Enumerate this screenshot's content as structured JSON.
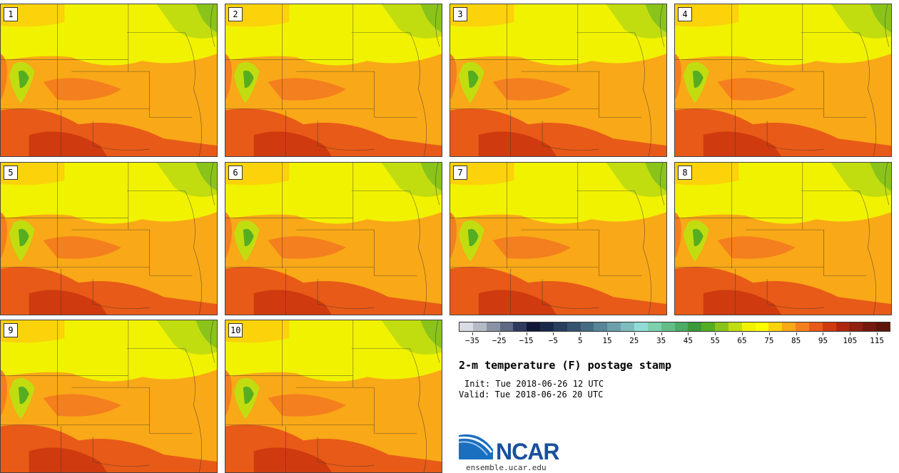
{
  "panels": [
    {
      "label": "1"
    },
    {
      "label": "2"
    },
    {
      "label": "3"
    },
    {
      "label": "4"
    },
    {
      "label": "5"
    },
    {
      "label": "6"
    },
    {
      "label": "7"
    },
    {
      "label": "8"
    },
    {
      "label": "9"
    },
    {
      "label": "10"
    }
  ],
  "colorbar": {
    "colors": [
      "#d9dde3",
      "#b4bac6",
      "#8a92a6",
      "#5f6884",
      "#2f3a5e",
      "#101a36",
      "#18294a",
      "#273e5e",
      "#35536f",
      "#456b82",
      "#578597",
      "#6b9fab",
      "#7dbcbf",
      "#92dcd7",
      "#7dd0ad",
      "#62be86",
      "#4cab66",
      "#3a9a3a",
      "#55ad22",
      "#8ac41a",
      "#c1dd10",
      "#f1f200",
      "#ffff00",
      "#fcd20a",
      "#f9a817",
      "#f47f1e",
      "#e85a17",
      "#cf3b0f",
      "#b0260c",
      "#902010",
      "#74190d",
      "#5e1409"
    ],
    "ticks": [
      "−35",
      "−25",
      "−15",
      "−5",
      "5",
      "15",
      "25",
      "35",
      "45",
      "55",
      "65",
      "75",
      "85",
      "95",
      "105",
      "115"
    ]
  },
  "title": "2-m temperature (F) postage stamp",
  "init_line": "Init: Tue 2018-06-26 12 UTC",
  "valid_line": "Valid: Tue 2018-06-26 20 UTC",
  "logo": {
    "text": "NCAR",
    "brand_color": "#1a4f9c"
  },
  "site": "ensemble.ucar.edu"
}
